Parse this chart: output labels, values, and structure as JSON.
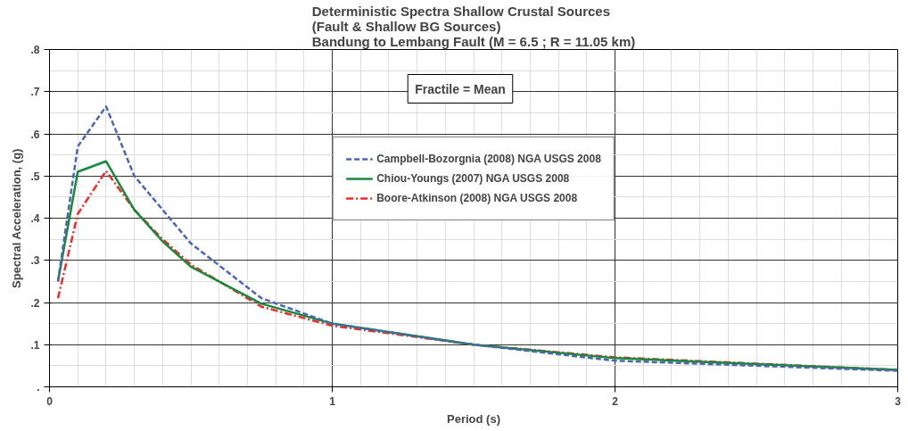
{
  "chart_data": {
    "type": "line",
    "title": "Deterministic Spectra Shallow Crustal Sources\n(Fault & Shallow BG Sources)\nBandung to Lembang Fault (M = 6.5 ; R = 11.05 km)",
    "xlabel": "Period (s)",
    "ylabel": "Spectral Acceleration, (g)",
    "x": [
      0.03,
      0.1,
      0.2,
      0.3,
      0.4,
      0.5,
      0.75,
      1.0,
      1.5,
      2.0,
      3.0
    ],
    "series": [
      {
        "name": "Campbell-Bozorgnia (2008) NGA USGS 2008",
        "color": "#4a66b8",
        "line_style": "dashed",
        "values": [
          0.25,
          0.57,
          0.665,
          0.5,
          0.42,
          0.34,
          0.21,
          0.15,
          0.1,
          0.062,
          0.038
        ]
      },
      {
        "name": "Chiou-Youngs (2007) NGA USGS 2008",
        "color": "#17893a",
        "line_style": "solid",
        "values": [
          0.25,
          0.51,
          0.535,
          0.42,
          0.345,
          0.285,
          0.197,
          0.15,
          0.1,
          0.068,
          0.04
        ]
      },
      {
        "name": "Boore-Atkinson (2008) NGA USGS 2008",
        "color": "#ee2a2a",
        "line_style": "dashdot",
        "values": [
          0.21,
          0.41,
          0.512,
          0.42,
          0.35,
          0.29,
          0.19,
          0.145,
          0.1,
          0.07,
          0.04
        ]
      }
    ],
    "annotations": [
      "Fractile = Mean"
    ],
    "xlim": [
      0,
      3
    ],
    "ylim": [
      0,
      0.8
    ],
    "xticks": [
      {
        "value": 0,
        "label": "0"
      },
      {
        "value": 1,
        "label": "1"
      },
      {
        "value": 2,
        "label": "2"
      },
      {
        "value": 3,
        "label": "3"
      }
    ],
    "yticks": [
      {
        "value": 0,
        "label": "."
      },
      {
        "value": 0.1,
        "label": ".1"
      },
      {
        "value": 0.2,
        "label": ".2"
      },
      {
        "value": 0.3,
        "label": ".3"
      },
      {
        "value": 0.4,
        "label": ".4"
      },
      {
        "value": 0.5,
        "label": ".5"
      },
      {
        "value": 0.6,
        "label": ".6"
      },
      {
        "value": 0.7,
        "label": ".7"
      },
      {
        "value": 0.8,
        "label": ".8"
      }
    ],
    "grid": true,
    "legend": "top",
    "marker": "none"
  }
}
